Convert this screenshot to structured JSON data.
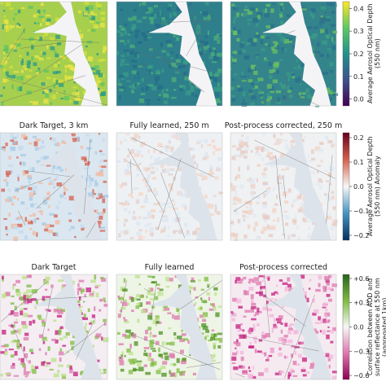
{
  "rows": [
    {
      "titles": [],
      "colorbar": {
        "label": "Average Aerosol Optical Depth (550 nm)",
        "lim": [
          -0.03,
          0.43
        ],
        "ticks": [
          {
            "value": 0,
            "label": "0.0"
          },
          0.1,
          0.2,
          0.3,
          0.4
        ],
        "colors": [
          "#440154",
          "#3b528b",
          "#21918c",
          "#5ec962",
          "#fde725"
        ]
      }
    },
    {
      "titles": [
        "Dark Target, 3 km",
        "Fully learned, 250 m",
        "Post-process corrected, 250 m"
      ],
      "colorbar": {
        "label": "Average Aerosol Optical Depth (550 nm) Anomaly",
        "lim": [
          -0.22,
          0.22
        ],
        "ticks": [
          {
            "value": -0.2,
            "label": "−0.2"
          },
          {
            "value": -0.1,
            "label": "−0.1"
          },
          {
            "value": 0,
            "label": "0.0"
          },
          0.1,
          0.2
        ],
        "colors": [
          "#053061",
          "#4393c3",
          "#f7f7f7",
          "#d6604d",
          "#67001f"
        ]
      }
    },
    {
      "titles": [
        "Dark Target",
        "Fully learned",
        "Post-process corrected"
      ],
      "colorbar": {
        "label": "Correlation between AOD and surface reflectance at 550 nm (aggregated 1km)",
        "lim": [
          -0.65,
          0.65
        ],
        "ticks": [
          {
            "value": -0.6,
            "label": "−0.6"
          },
          {
            "value": -0.3,
            "label": "−0.3"
          },
          {
            "value": 0,
            "label": "0.0"
          },
          {
            "value": 0.3,
            "label": "+0.3"
          },
          {
            "value": 0.6,
            "label": "+0.6"
          }
        ],
        "colors": [
          "#8e0152",
          "#de77ae",
          "#f7f7f7",
          "#7fbc41",
          "#276419"
        ]
      }
    }
  ]
}
